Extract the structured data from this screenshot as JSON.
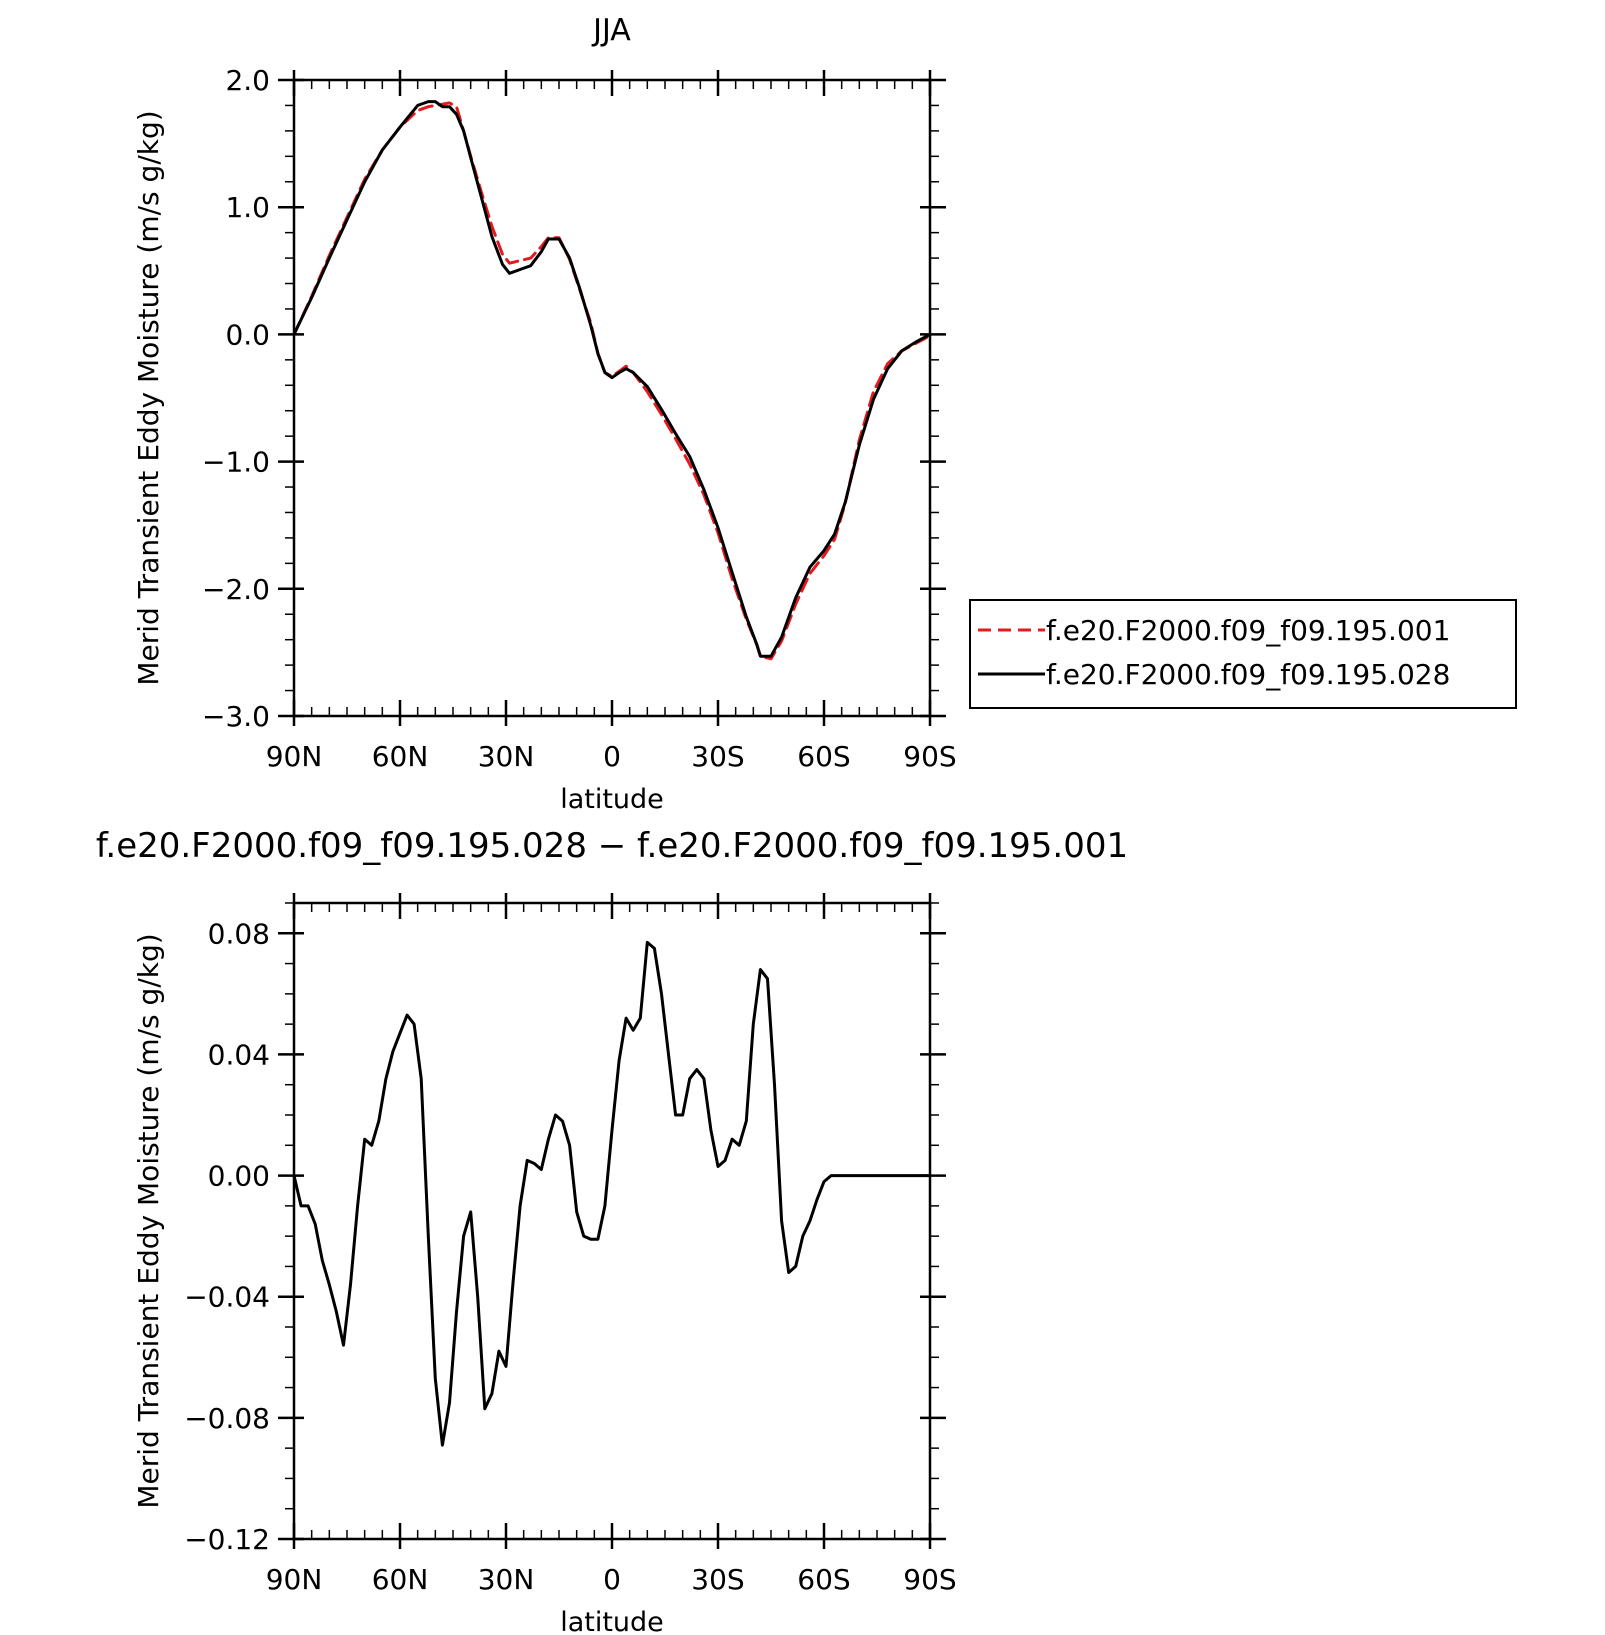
{
  "chart_data": [
    {
      "type": "line",
      "title": "JJA",
      "xlabel": "latitude",
      "ylabel": "Merid Transient Eddy Moisture (m/s g/kg)",
      "xlim": [
        90,
        -90
      ],
      "ylim": [
        -3.0,
        2.0
      ],
      "x_ticks": [
        90,
        60,
        30,
        0,
        -30,
        -60,
        -90
      ],
      "x_tick_labels": [
        "90N",
        "60N",
        "30N",
        "0",
        "30S",
        "60S",
        "90S"
      ],
      "y_ticks": [
        2.0,
        1.0,
        0.0,
        -1.0,
        -2.0,
        -3.0
      ],
      "y_tick_labels": [
        "2.0",
        "1.0",
        "0.0",
        "−1.0",
        "−2.0",
        "−3.0"
      ],
      "legend_position": "right",
      "series": [
        {
          "name": "f.e20.F2000.f09_f09.195.001",
          "color": "#e41a1c",
          "dash": "dashed",
          "x": [
            90,
            85,
            80,
            75,
            70,
            65,
            60,
            55,
            52,
            50,
            48,
            46,
            44,
            42,
            40,
            37,
            34,
            31,
            29,
            26,
            23,
            20,
            18,
            15,
            12,
            9,
            6,
            4,
            2,
            0,
            -2,
            -4,
            -6,
            -10,
            -14,
            -18,
            -22,
            -26,
            -30,
            -34,
            -38,
            -41,
            -42,
            -45,
            -48,
            -52,
            -56,
            -60,
            -63,
            -66,
            -70,
            -74,
            -78,
            -82,
            -86,
            -90
          ],
          "y": [
            0.0,
            0.3,
            0.62,
            0.92,
            1.22,
            1.45,
            1.63,
            1.76,
            1.79,
            1.8,
            1.81,
            1.82,
            1.79,
            1.6,
            1.4,
            1.12,
            0.85,
            0.63,
            0.56,
            0.58,
            0.6,
            0.69,
            0.76,
            0.76,
            0.59,
            0.34,
            0.09,
            -0.15,
            -0.3,
            -0.33,
            -0.29,
            -0.25,
            -0.3,
            -0.45,
            -0.63,
            -0.82,
            -1.02,
            -1.26,
            -1.56,
            -1.92,
            -2.24,
            -2.44,
            -2.53,
            -2.55,
            -2.41,
            -2.12,
            -1.88,
            -1.74,
            -1.61,
            -1.33,
            -0.83,
            -0.45,
            -0.23,
            -0.13,
            -0.07,
            -0.01
          ]
        },
        {
          "name": "f.e20.F2000.f09_f09.195.028",
          "color": "#000000",
          "dash": "solid",
          "x": [
            90,
            85,
            80,
            75,
            70,
            65,
            60,
            55,
            52,
            50,
            48,
            46,
            44,
            42,
            40,
            37,
            34,
            31,
            29,
            26,
            23,
            20,
            18,
            15,
            12,
            9,
            6,
            4,
            2,
            0,
            -2,
            -4,
            -6,
            -10,
            -14,
            -18,
            -22,
            -26,
            -30,
            -34,
            -38,
            -41,
            -42,
            -45,
            -48,
            -52,
            -56,
            -60,
            -63,
            -66,
            -70,
            -74,
            -78,
            -82,
            -86,
            -90
          ],
          "y": [
            0.0,
            0.29,
            0.6,
            0.9,
            1.2,
            1.45,
            1.63,
            1.8,
            1.83,
            1.83,
            1.79,
            1.79,
            1.73,
            1.6,
            1.39,
            1.08,
            0.77,
            0.55,
            0.48,
            0.51,
            0.54,
            0.65,
            0.75,
            0.75,
            0.6,
            0.35,
            0.07,
            -0.15,
            -0.3,
            -0.34,
            -0.3,
            -0.27,
            -0.3,
            -0.41,
            -0.59,
            -0.78,
            -0.96,
            -1.22,
            -1.52,
            -1.87,
            -2.22,
            -2.44,
            -2.53,
            -2.53,
            -2.38,
            -2.07,
            -1.83,
            -1.7,
            -1.57,
            -1.32,
            -0.87,
            -0.51,
            -0.27,
            -0.13,
            -0.06,
            0.0
          ]
        }
      ]
    },
    {
      "type": "line",
      "title": "f.e20.F2000.f09_f09.195.028 − f.e20.F2000.f09_f09.195.001",
      "xlabel": "latitude",
      "ylabel": "Merid Transient Eddy Moisture (m/s g/kg)",
      "xlim": [
        90,
        -90
      ],
      "ylim": [
        -0.12,
        0.09
      ],
      "x_ticks": [
        90,
        60,
        30,
        0,
        -30,
        -60,
        -90
      ],
      "x_tick_labels": [
        "90N",
        "60N",
        "30N",
        "0",
        "30S",
        "60S",
        "90S"
      ],
      "y_ticks": [
        0.08,
        0.04,
        0.0,
        -0.04,
        -0.08,
        -0.12
      ],
      "y_tick_labels": [
        "0.08",
        "0.04",
        "0.00",
        "−0.04",
        "−0.08",
        "−0.12"
      ],
      "series": [
        {
          "color": "#000000",
          "dash": "solid",
          "x": [
            90,
            88,
            86,
            84,
            82,
            80,
            78,
            76,
            74,
            72,
            70,
            68,
            66,
            64,
            62,
            60,
            58,
            56,
            54,
            52,
            50,
            48,
            46,
            44,
            42,
            40,
            38,
            36,
            34,
            32,
            30,
            28,
            26,
            24,
            22,
            20,
            18,
            16,
            14,
            12,
            10,
            8,
            6,
            4,
            2,
            0,
            -2,
            -4,
            -6,
            -8,
            -10,
            -12,
            -14,
            -16,
            -18,
            -20,
            -22,
            -24,
            -26,
            -28,
            -30,
            -32,
            -34,
            -36,
            -38,
            -40,
            -42,
            -44,
            -46,
            -48,
            -50,
            -52,
            -54,
            -56,
            -58,
            -60,
            -62,
            -64,
            -66,
            -68,
            -70,
            -72,
            -74,
            -76,
            -78,
            -80,
            -82,
            -84,
            -86,
            -88,
            -90
          ],
          "y": [
            0.0,
            -0.01,
            -0.01,
            -0.016,
            -0.028,
            -0.036,
            -0.045,
            -0.056,
            -0.036,
            -0.01,
            0.012,
            0.01,
            0.018,
            0.032,
            0.041,
            0.047,
            0.053,
            0.05,
            0.032,
            -0.02,
            -0.067,
            -0.089,
            -0.075,
            -0.045,
            -0.02,
            -0.012,
            -0.04,
            -0.077,
            -0.072,
            -0.058,
            -0.063,
            -0.035,
            -0.01,
            0.005,
            0.004,
            0.002,
            0.012,
            0.02,
            0.018,
            0.01,
            -0.012,
            -0.02,
            -0.021,
            -0.021,
            -0.01,
            0.015,
            0.038,
            0.052,
            0.048,
            0.052,
            0.077,
            0.075,
            0.06,
            0.04,
            0.02,
            0.02,
            0.032,
            0.035,
            0.032,
            0.015,
            0.003,
            0.005,
            0.012,
            0.01,
            0.018,
            0.05,
            0.068,
            0.065,
            0.03,
            -0.015,
            -0.032,
            -0.03,
            -0.02,
            -0.015,
            -0.008,
            -0.002,
            0.0,
            0.0,
            0.0,
            0.0,
            0.0,
            0.0,
            0.0,
            0.0,
            0.0,
            0.0,
            0.0,
            0.0,
            0.0,
            0.0,
            0.0
          ]
        }
      ]
    }
  ]
}
